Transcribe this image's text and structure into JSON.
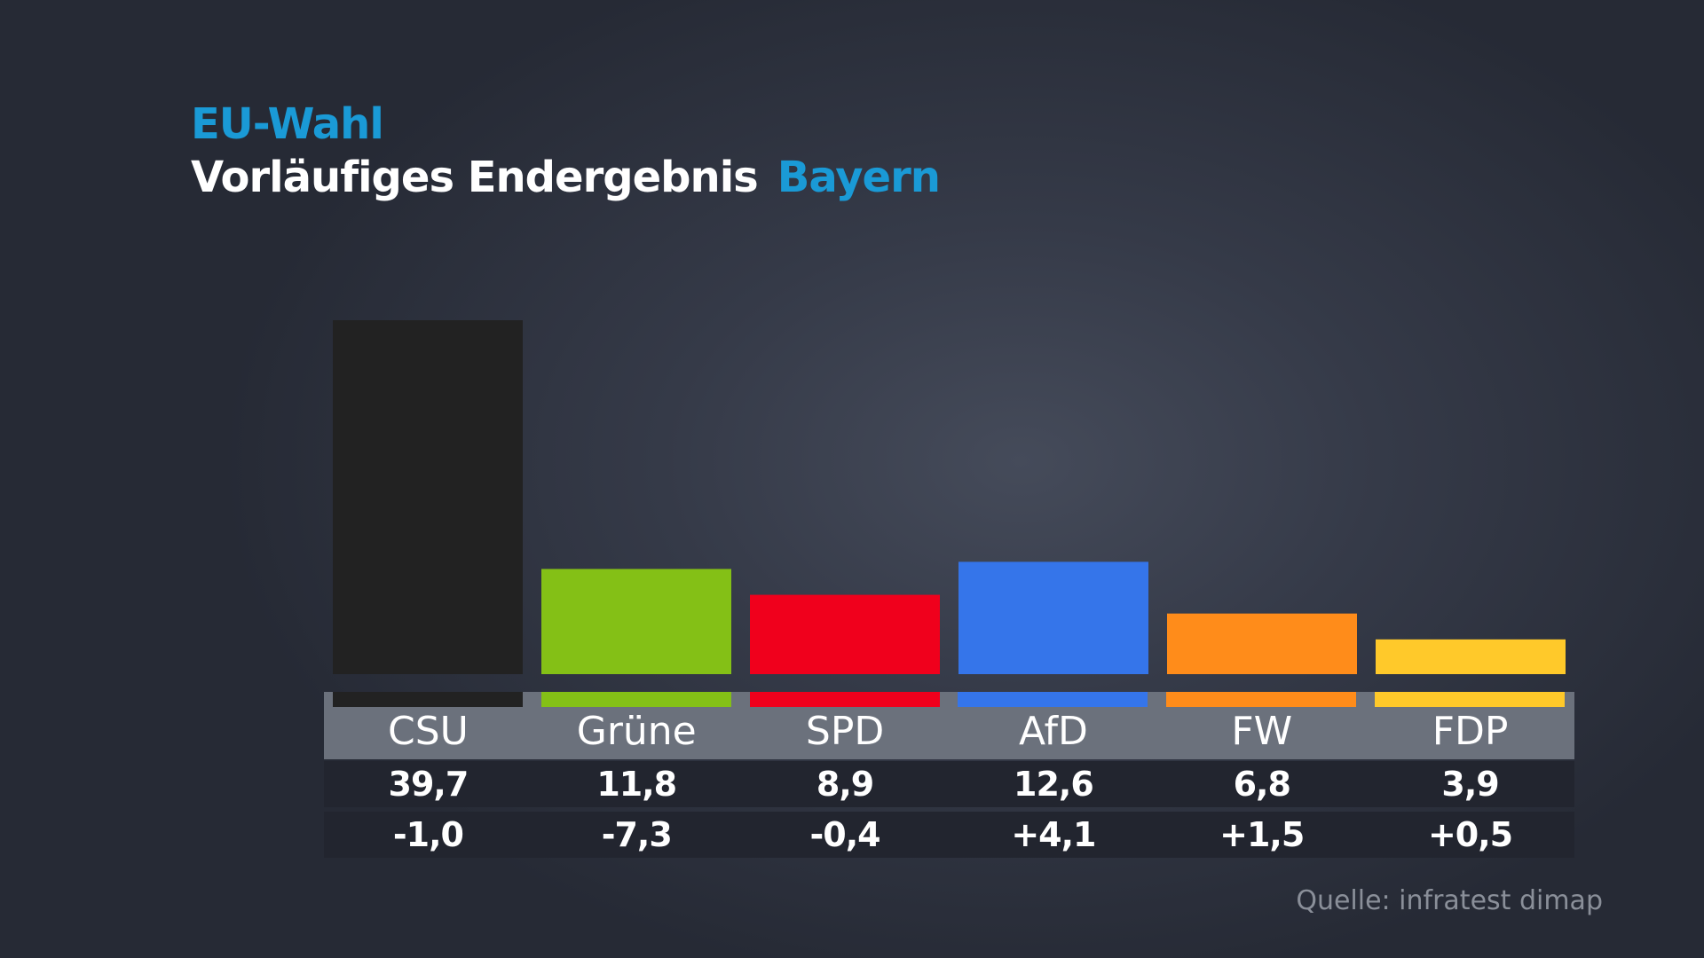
{
  "title": "EU-Wahl",
  "subtitle": "Vorläufiges Endergebnis",
  "region": "Bayern",
  "source": "Quelle: infratest dimap",
  "chart_data": {
    "type": "bar",
    "title": "EU-Wahl",
    "categories": [
      "CSU",
      "Grüne",
      "SPD",
      "AfD",
      "FW",
      "FDP"
    ],
    "values": [
      39.7,
      11.8,
      8.9,
      12.6,
      6.8,
      3.9
    ],
    "value_labels": [
      "39,7",
      "11,8",
      "8,9",
      "12,6",
      "6,8",
      "3,9"
    ],
    "change_labels": [
      "-1,0",
      "-7,3",
      "-0,4",
      "+4,1",
      "+1,5",
      "+0,5"
    ],
    "changes": [
      -1.0,
      -7.3,
      -0.4,
      4.1,
      1.5,
      0.5
    ],
    "colors": [
      "#222222",
      "#84c016",
      "#f0001c",
      "#3575ea",
      "#ff8c1a",
      "#ffc92a"
    ],
    "ylim": [
      0,
      40
    ],
    "grid": false
  }
}
